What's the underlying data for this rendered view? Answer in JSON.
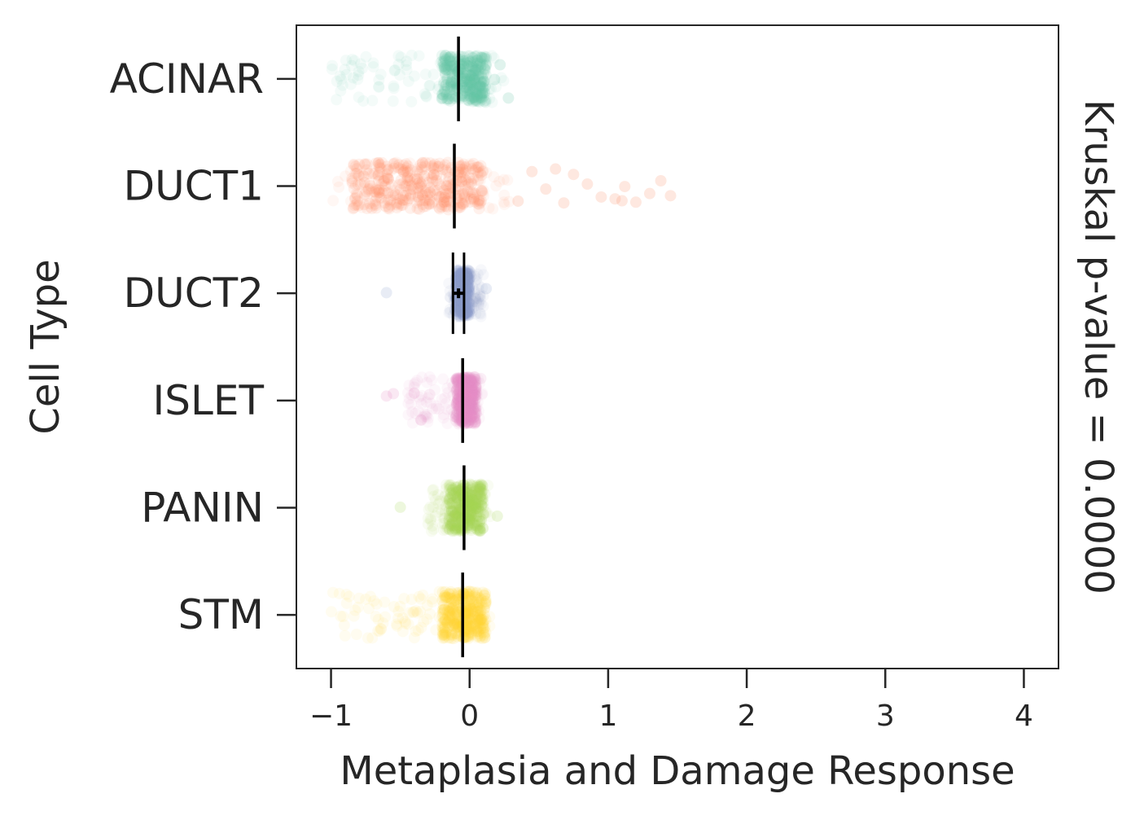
{
  "chart_data": {
    "type": "strip",
    "xlabel": "Metaplasia and Damage Response",
    "ylabel": "Cell Type",
    "right_label": "Kruskal p-value = 0.0000",
    "xlim": [
      -1.25,
      4.25
    ],
    "xticks": [
      -1,
      0,
      1,
      2,
      3,
      4
    ],
    "xtick_labels": [
      "−1",
      "0",
      "1",
      "2",
      "3",
      "4"
    ],
    "categories": [
      "ACINAR",
      "DUCT1",
      "DUCT2",
      "ISLET",
      "PANIN",
      "STM"
    ],
    "series": [
      {
        "name": "ACINAR",
        "color": "#66c2a5",
        "range": [
          -1.0,
          0.25
        ],
        "dense_range": [
          -0.2,
          0.12
        ],
        "median": -0.08,
        "ci": [
          -0.09,
          -0.07
        ],
        "outliers": [
          0.28,
          0.22,
          0.18
        ]
      },
      {
        "name": "DUCT1",
        "color": "#fc8d62",
        "range": [
          -1.0,
          0.3
        ],
        "dense_range": [
          -0.85,
          0.1
        ],
        "median": -0.11,
        "ci": [
          -0.12,
          -0.1
        ],
        "outliers": [
          0.35,
          0.45,
          0.55,
          0.62,
          0.75,
          0.85,
          0.95,
          1.05,
          1.12,
          1.2,
          1.3,
          1.38,
          1.45,
          1.1,
          0.68
        ]
      },
      {
        "name": "DUCT2",
        "color": "#8da0cb",
        "range": [
          -0.15,
          0.1
        ],
        "dense_range": [
          -0.1,
          0.0
        ],
        "median": -0.08,
        "ci": [
          -0.12,
          -0.04
        ],
        "outliers": [
          -0.6,
          0.12
        ]
      },
      {
        "name": "ISLET",
        "color": "#e78ac3",
        "range": [
          -0.45,
          0.1
        ],
        "dense_range": [
          -0.1,
          0.05
        ],
        "median": -0.05,
        "ci": [
          -0.06,
          -0.04
        ],
        "outliers": [
          -0.6,
          -0.55,
          -0.4,
          -0.35
        ]
      },
      {
        "name": "PANIN",
        "color": "#a6d854",
        "range": [
          -0.3,
          0.15
        ],
        "dense_range": [
          -0.15,
          0.1
        ],
        "median": -0.04,
        "ci": [
          -0.05,
          -0.03
        ],
        "outliers": [
          -0.5,
          0.2
        ]
      },
      {
        "name": "STM",
        "color": "#ffd92f",
        "range": [
          -1.0,
          0.15
        ],
        "dense_range": [
          -0.2,
          0.12
        ],
        "median": -0.05,
        "ci": [
          -0.06,
          -0.04
        ],
        "outliers": []
      }
    ]
  }
}
